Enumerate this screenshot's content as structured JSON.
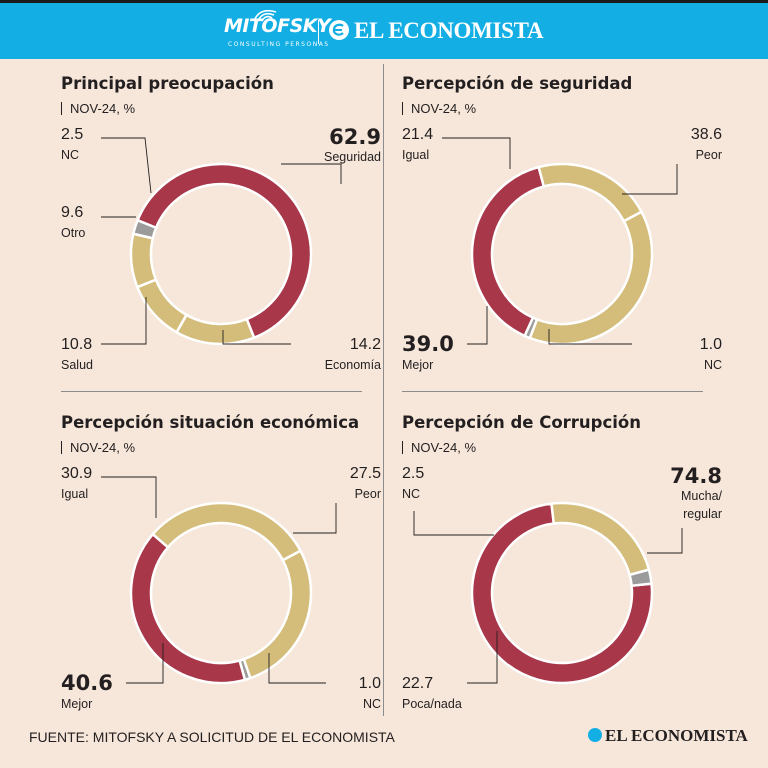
{
  "header": {
    "brand_left": "MITOFSKY",
    "brand_left_sub": "CONSULTING PERSONAS",
    "brand_right": "EL ECONOMISTA"
  },
  "colors": {
    "red": "#a83749",
    "tan": "#d4bd7b",
    "gray": "#9b9b9b",
    "header": "#12aee4",
    "background": "#f6e7da"
  },
  "chart_data": [
    {
      "id": "preocupacion",
      "type": "pie",
      "title": "Principal preocupación",
      "subtitle": "NOV-24, %",
      "series": [
        {
          "name": "Seguridad",
          "value": 62.9,
          "color": "red",
          "emphasis": true
        },
        {
          "name": "Economía",
          "value": 14.2,
          "color": "tan"
        },
        {
          "name": "Salud",
          "value": 10.8,
          "color": "tan"
        },
        {
          "name": "Otro",
          "value": 9.6,
          "color": "tan"
        },
        {
          "name": "NC",
          "value": 2.5,
          "color": "gray"
        }
      ]
    },
    {
      "id": "seguridad",
      "type": "pie",
      "title": "Percepción de seguridad",
      "subtitle": "NOV-24, %",
      "series": [
        {
          "name": "Peor",
          "value": 38.6,
          "color": "tan"
        },
        {
          "name": "NC",
          "value": 1.0,
          "color": "gray"
        },
        {
          "name": "Mejor",
          "value": 39.0,
          "color": "red",
          "emphasis": true
        },
        {
          "name": "Igual",
          "value": 21.4,
          "color": "tan"
        }
      ]
    },
    {
      "id": "economica",
      "type": "pie",
      "title": "Percepción situación económica",
      "subtitle": "NOV-24, %",
      "series": [
        {
          "name": "Peor",
          "value": 27.5,
          "color": "tan"
        },
        {
          "name": "NC",
          "value": 1.0,
          "color": "gray"
        },
        {
          "name": "Mejor",
          "value": 40.6,
          "color": "red",
          "emphasis": true
        },
        {
          "name": "Igual",
          "value": 30.9,
          "color": "tan"
        }
      ]
    },
    {
      "id": "corrupcion",
      "type": "pie",
      "title": "Percepción de Corrupción",
      "subtitle": "NOV-24, %",
      "series": [
        {
          "name": "Mucha/ regular",
          "value": 74.8,
          "color": "red",
          "emphasis": true
        },
        {
          "name": "Poca/nada",
          "value": 22.7,
          "color": "tan"
        },
        {
          "name": "NC",
          "value": 2.5,
          "color": "gray"
        }
      ]
    }
  ],
  "labels": {
    "p1": {
      "s0v": "62.9",
      "s0n": "Seguridad",
      "s1v": "14.2",
      "s1n": "Economía",
      "s2v": "10.8",
      "s2n": "Salud",
      "s3v": "9.6",
      "s3n": "Otro",
      "s4v": "2.5",
      "s4n": "NC"
    },
    "p2": {
      "s0v": "38.6",
      "s0n": "Peor",
      "s1v": "1.0",
      "s1n": "NC",
      "s2v": "39.0",
      "s2n": "Mejor",
      "s3v": "21.4",
      "s3n": "Igual"
    },
    "p3": {
      "s0v": "27.5",
      "s0n": "Peor",
      "s1v": "1.0",
      "s1n": "NC",
      "s2v": "40.6",
      "s2n": "Mejor",
      "s3v": "30.9",
      "s3n": "Igual"
    },
    "p4": {
      "s0v": "74.8",
      "s0n1": "Mucha/",
      "s0n2": "regular",
      "s1v": "22.7",
      "s1n": "Poca/nada",
      "s2v": "2.5",
      "s2n": "NC"
    }
  },
  "footer": {
    "source": "FUENTE: MITOFSKY A SOLICITUD DE EL ECONOMISTA",
    "logo": "EL ECONOMISTA"
  }
}
